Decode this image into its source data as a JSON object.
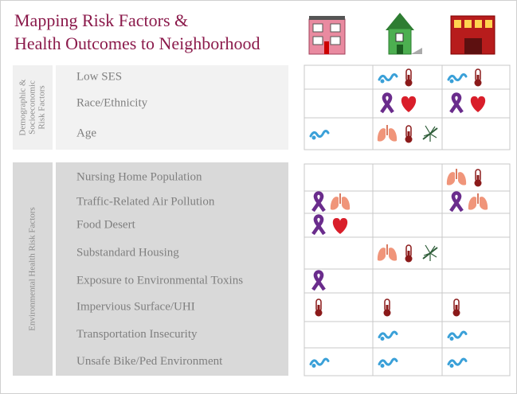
{
  "title_lines": [
    "Mapping Risk Factors &",
    "Health Outcomes to Neighborhood"
  ],
  "groups": [
    {
      "label_lines": [
        "Demographic &",
        "Socioeconomic",
        "Risk Factors"
      ],
      "rows": [
        "Low SES",
        "Race/Ethnicity",
        "Age"
      ]
    },
    {
      "label_lines": [
        "Environmental Health Risk Factors"
      ],
      "rows": [
        "Nursing Home Population",
        "Traffic-Related Air Pollution",
        "Food Desert",
        "Substandard Housing",
        "Exposure to Environmental Toxins",
        "Impervious Surface/UHI",
        "Transportation Insecurity",
        "Unsafe Bike/Ped Environment"
      ]
    }
  ]
}
